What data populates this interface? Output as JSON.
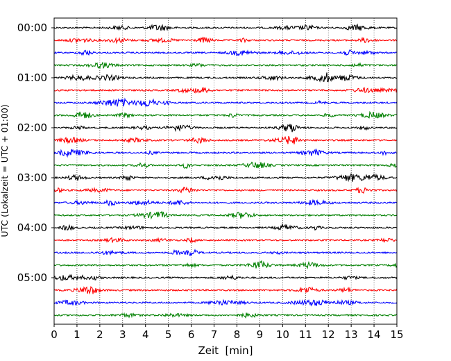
{
  "chart_data": {
    "type": "line",
    "title": "",
    "xlabel": "Zeit  [min]",
    "ylabel": "UTC (Lokalzeit = UTC + 01:00)",
    "xlim": [
      0,
      15
    ],
    "x_ticks": [
      "0",
      "1",
      "2",
      "3",
      "4",
      "5",
      "6",
      "7",
      "8",
      "9",
      "10",
      "11",
      "12",
      "13",
      "14",
      "15"
    ],
    "y_ticks": [
      {
        "label": "00:00",
        "row": 0
      },
      {
        "label": "01:00",
        "row": 4
      },
      {
        "label": "02:00",
        "row": 8
      },
      {
        "label": "03:00",
        "row": 12
      },
      {
        "label": "04:00",
        "row": 16
      },
      {
        "label": "05:00",
        "row": 20
      }
    ],
    "minutes_per_row": 15,
    "row_count": 24,
    "color_cycle": [
      "#000000",
      "#ff0000",
      "#0000ff",
      "#008000"
    ],
    "grid": "vertical dotted at each minute",
    "legend": "none"
  }
}
